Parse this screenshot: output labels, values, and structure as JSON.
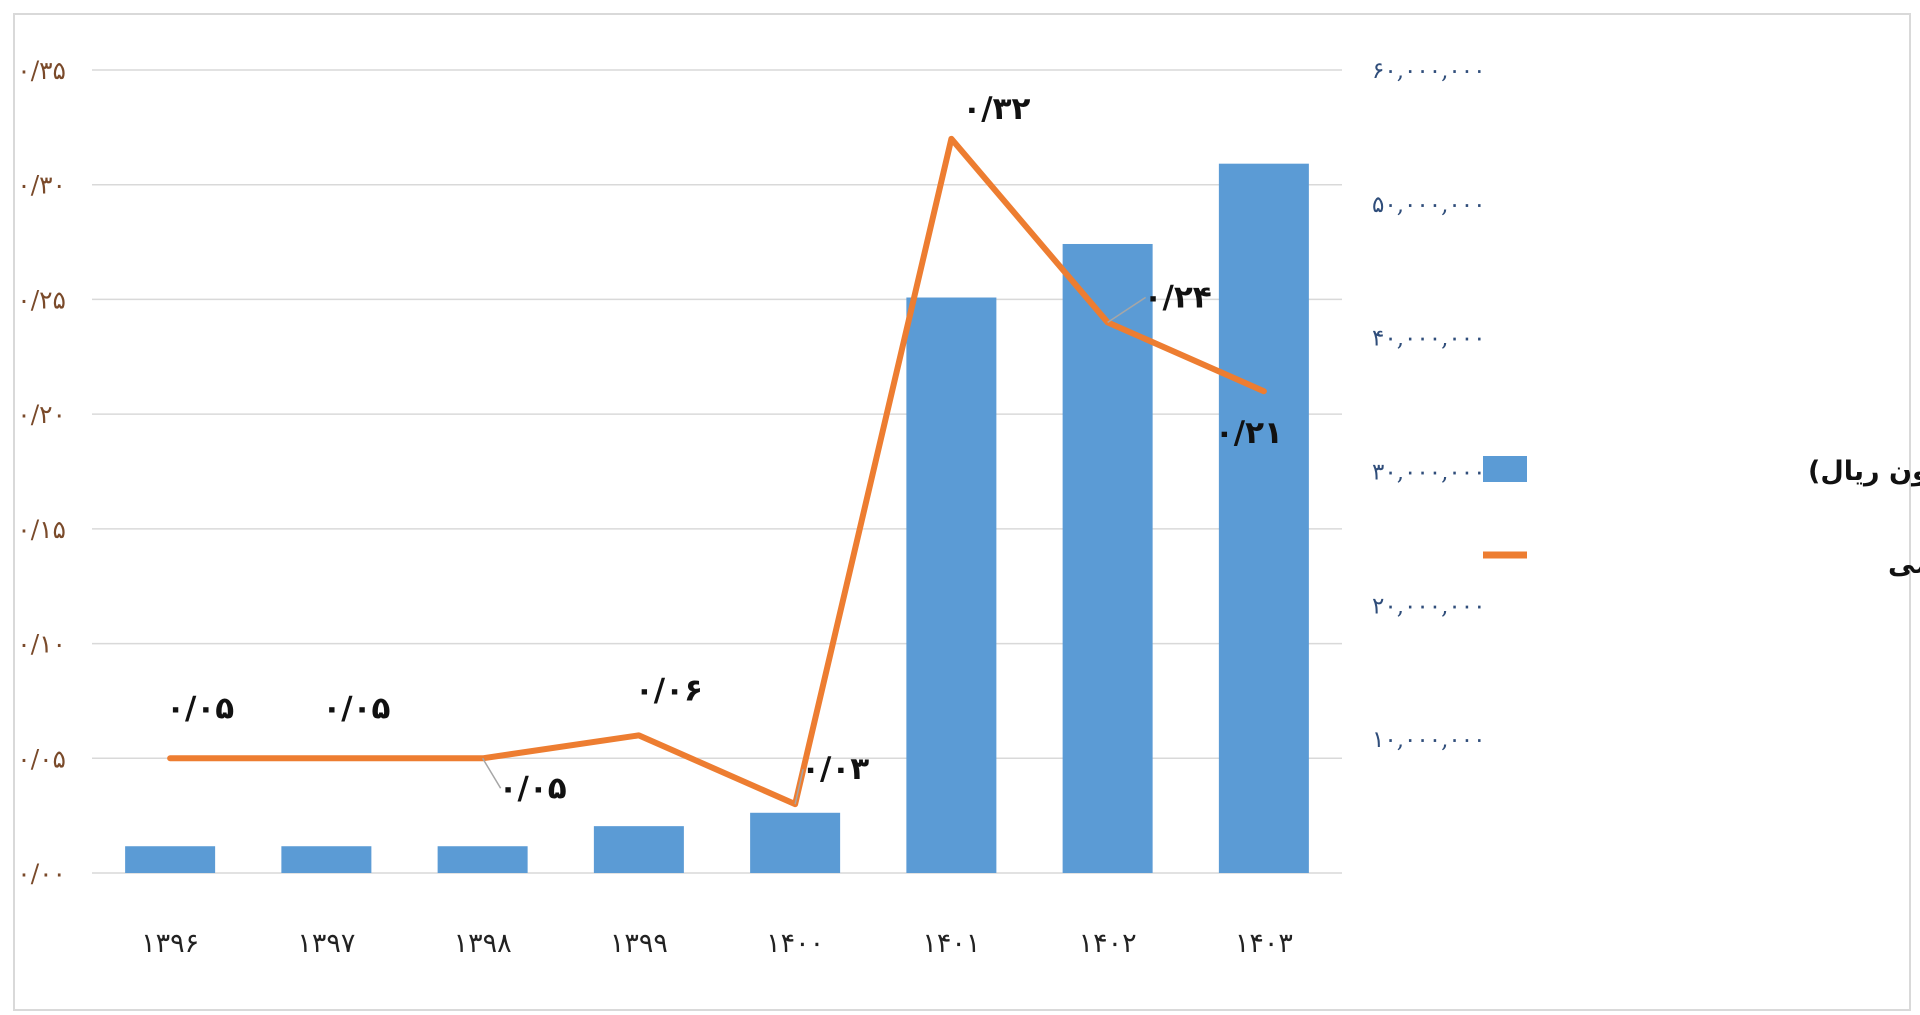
{
  "chart_data": {
    "type": "bar",
    "categories": [
      "۱۳۹۶",
      "۱۳۹۷",
      "۱۳۹۸",
      "۱۳۹۹",
      "۱۴۰۰",
      "۱۴۰۱",
      "۱۴۰۲",
      "۱۴۰۳"
    ],
    "series": [
      {
        "name": "جمع اعتبارات (میلیون ریال)",
        "type": "bar",
        "axis": "right",
        "color": "#5b9bd5",
        "values": [
          2000000,
          2000000,
          2000000,
          3500000,
          4500000,
          43000000,
          47000000,
          53000000
        ]
      },
      {
        "name": "درصد از سهم فضایی از بودجه عمومی",
        "type": "line",
        "axis": "left",
        "color": "#ed7d31",
        "values": [
          0.05,
          0.05,
          0.05,
          0.06,
          0.03,
          0.32,
          0.24,
          0.21
        ],
        "labels": [
          "۰/۰۵",
          "۰/۰۵",
          "۰/۰۵",
          "۰/۰۶",
          "۰/۰۳",
          "۰/۳۲",
          "۰/۲۴",
          "۰/۲۱"
        ]
      }
    ],
    "left_axis": {
      "range": [
        0,
        0.35
      ],
      "ticks": [
        0,
        0.05,
        0.1,
        0.15,
        0.2,
        0.25,
        0.3,
        0.35
      ],
      "tick_labels": [
        "۰/۰۰",
        "۰/۰۵",
        "۰/۱۰",
        "۰/۱۵",
        "۰/۲۰",
        "۰/۲۵",
        "۰/۳۰",
        "۰/۳۵"
      ]
    },
    "right_axis": {
      "range": [
        0,
        60000000
      ],
      "ticks": [
        0,
        10000000,
        20000000,
        30000000,
        40000000,
        50000000,
        60000000
      ],
      "tick_labels": [
        "",
        "۱۰,۰۰۰,۰۰۰",
        "۲۰,۰۰۰,۰۰۰",
        "۳۰,۰۰۰,۰۰۰",
        "۴۰,۰۰۰,۰۰۰",
        "۵۰,۰۰۰,۰۰۰",
        "۶۰,۰۰۰,۰۰۰"
      ]
    },
    "grid": true,
    "legend_position": "right",
    "title": "",
    "xlabel": "",
    "ylabel": ""
  }
}
